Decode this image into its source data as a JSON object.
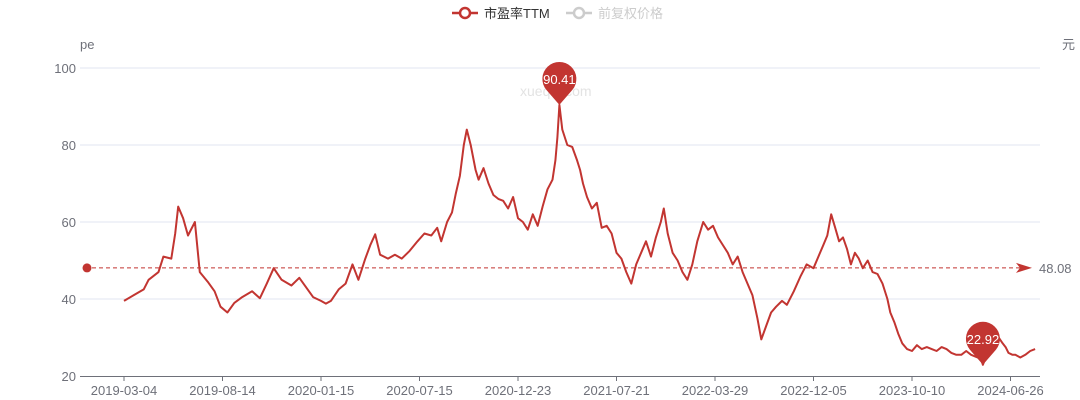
{
  "chart_data": {
    "type": "line",
    "y_unit_left": "pe",
    "y_unit_right": "元",
    "ylim": [
      20,
      100
    ],
    "y_ticks": [
      20,
      40,
      60,
      80,
      100
    ],
    "x_tick_labels": [
      "2019-03-04",
      "2019-08-14",
      "2020-01-15",
      "2020-07-15",
      "2020-12-23",
      "2021-07-21",
      "2022-03-29",
      "2022-12-05",
      "2023-10-10",
      "2024-06-26"
    ],
    "legend": {
      "position": "top-center",
      "items": [
        {
          "name": "市盈率TTM",
          "color": "#c23531",
          "active": true
        },
        {
          "name": "前复权价格",
          "color": "#cccccc",
          "active": false
        }
      ]
    },
    "colors": {
      "line": "#c23531",
      "grid": "#e0e6f1",
      "axis": "#6e7079"
    },
    "max_point": {
      "label": "90.41",
      "value": 90.41,
      "at_tick": 4.42
    },
    "min_point": {
      "label": "22.92",
      "value": 22.92,
      "at_tick": 8.72
    },
    "average": {
      "label": "48.08",
      "value": 48.08
    },
    "watermark": "xueqiu.com",
    "series": [
      {
        "name": "市盈率TTM",
        "points": [
          [
            0.0,
            39.5
          ],
          [
            0.1,
            41.0
          ],
          [
            0.2,
            42.5
          ],
          [
            0.25,
            45.0
          ],
          [
            0.35,
            47.0
          ],
          [
            0.4,
            51.0
          ],
          [
            0.48,
            50.5
          ],
          [
            0.52,
            57.0
          ],
          [
            0.55,
            64.0
          ],
          [
            0.6,
            61.0
          ],
          [
            0.65,
            56.5
          ],
          [
            0.72,
            60.0
          ],
          [
            0.77,
            47.0
          ],
          [
            0.85,
            44.5
          ],
          [
            0.92,
            42.0
          ],
          [
            0.98,
            38.0
          ],
          [
            1.05,
            36.5
          ],
          [
            1.12,
            39.0
          ],
          [
            1.2,
            40.5
          ],
          [
            1.3,
            42.0
          ],
          [
            1.38,
            40.2
          ],
          [
            1.45,
            44.0
          ],
          [
            1.52,
            48.0
          ],
          [
            1.6,
            45.0
          ],
          [
            1.7,
            43.5
          ],
          [
            1.78,
            45.5
          ],
          [
            1.85,
            43.0
          ],
          [
            1.92,
            40.5
          ],
          [
            2.0,
            39.5
          ],
          [
            2.05,
            38.8
          ],
          [
            2.1,
            39.5
          ],
          [
            2.18,
            42.5
          ],
          [
            2.25,
            44.0
          ],
          [
            2.32,
            49.0
          ],
          [
            2.38,
            45.0
          ],
          [
            2.45,
            50.5
          ],
          [
            2.5,
            54.0
          ],
          [
            2.55,
            56.8
          ],
          [
            2.6,
            51.5
          ],
          [
            2.68,
            50.5
          ],
          [
            2.75,
            51.5
          ],
          [
            2.82,
            50.5
          ],
          [
            2.9,
            52.5
          ],
          [
            2.98,
            55.0
          ],
          [
            3.05,
            57.0
          ],
          [
            3.12,
            56.5
          ],
          [
            3.18,
            58.5
          ],
          [
            3.22,
            55.0
          ],
          [
            3.28,
            60.0
          ],
          [
            3.33,
            62.5
          ],
          [
            3.37,
            67.5
          ],
          [
            3.41,
            72.0
          ],
          [
            3.45,
            80.0
          ],
          [
            3.48,
            84.0
          ],
          [
            3.52,
            80.0
          ],
          [
            3.57,
            73.5
          ],
          [
            3.6,
            71.0
          ],
          [
            3.65,
            74.0
          ],
          [
            3.7,
            70.0
          ],
          [
            3.75,
            67.0
          ],
          [
            3.8,
            66.0
          ],
          [
            3.85,
            65.5
          ],
          [
            3.9,
            63.5
          ],
          [
            3.95,
            66.5
          ],
          [
            4.0,
            61.0
          ],
          [
            4.05,
            60.0
          ],
          [
            4.1,
            58.0
          ],
          [
            4.15,
            62.0
          ],
          [
            4.2,
            59.0
          ],
          [
            4.25,
            64.0
          ],
          [
            4.3,
            68.5
          ],
          [
            4.35,
            71.0
          ],
          [
            4.38,
            76.0
          ],
          [
            4.4,
            82.0
          ],
          [
            4.42,
            90.41
          ],
          [
            4.45,
            84.0
          ],
          [
            4.5,
            80.0
          ],
          [
            4.55,
            79.5
          ],
          [
            4.6,
            76.0
          ],
          [
            4.63,
            73.5
          ],
          [
            4.66,
            70.0
          ],
          [
            4.7,
            66.5
          ],
          [
            4.75,
            63.5
          ],
          [
            4.8,
            65.0
          ],
          [
            4.85,
            58.5
          ],
          [
            4.9,
            59.0
          ],
          [
            4.95,
            57.0
          ],
          [
            5.0,
            52.0
          ],
          [
            5.05,
            50.5
          ],
          [
            5.1,
            47.0
          ],
          [
            5.15,
            44.0
          ],
          [
            5.2,
            49.0
          ],
          [
            5.25,
            52.0
          ],
          [
            5.3,
            55.0
          ],
          [
            5.35,
            51.0
          ],
          [
            5.4,
            56.0
          ],
          [
            5.45,
            60.0
          ],
          [
            5.48,
            63.5
          ],
          [
            5.52,
            57.0
          ],
          [
            5.57,
            52.0
          ],
          [
            5.62,
            50.0
          ],
          [
            5.67,
            47.0
          ],
          [
            5.72,
            45.0
          ],
          [
            5.77,
            49.0
          ],
          [
            5.82,
            55.0
          ],
          [
            5.88,
            60.0
          ],
          [
            5.93,
            58.0
          ],
          [
            5.98,
            59.0
          ],
          [
            6.03,
            56.0
          ],
          [
            6.08,
            54.0
          ],
          [
            6.13,
            52.0
          ],
          [
            6.18,
            49.0
          ],
          [
            6.23,
            51.0
          ],
          [
            6.28,
            47.0
          ],
          [
            6.33,
            44.0
          ],
          [
            6.38,
            41.0
          ],
          [
            6.43,
            35.0
          ],
          [
            6.47,
            29.5
          ],
          [
            6.52,
            33.0
          ],
          [
            6.57,
            36.5
          ],
          [
            6.62,
            38.0
          ],
          [
            6.68,
            39.5
          ],
          [
            6.73,
            38.5
          ],
          [
            6.8,
            42.0
          ],
          [
            6.87,
            46.0
          ],
          [
            6.93,
            49.0
          ],
          [
            7.0,
            48.0
          ],
          [
            7.05,
            51.0
          ],
          [
            7.1,
            54.0
          ],
          [
            7.14,
            56.5
          ],
          [
            7.18,
            62.0
          ],
          [
            7.22,
            58.5
          ],
          [
            7.26,
            55.0
          ],
          [
            7.3,
            56.0
          ],
          [
            7.34,
            53.0
          ],
          [
            7.38,
            49.0
          ],
          [
            7.42,
            52.0
          ],
          [
            7.46,
            50.5
          ],
          [
            7.5,
            48.0
          ],
          [
            7.55,
            50.0
          ],
          [
            7.6,
            47.0
          ],
          [
            7.65,
            46.5
          ],
          [
            7.7,
            44.0
          ],
          [
            7.75,
            40.0
          ],
          [
            7.78,
            36.5
          ],
          [
            7.82,
            34.0
          ],
          [
            7.86,
            31.0
          ],
          [
            7.9,
            28.5
          ],
          [
            7.95,
            27.0
          ],
          [
            8.0,
            26.5
          ],
          [
            8.05,
            28.0
          ],
          [
            8.1,
            27.0
          ],
          [
            8.15,
            27.5
          ],
          [
            8.2,
            27.0
          ],
          [
            8.25,
            26.5
          ],
          [
            8.3,
            27.5
          ],
          [
            8.35,
            27.0
          ],
          [
            8.4,
            26.0
          ],
          [
            8.45,
            25.5
          ],
          [
            8.5,
            25.5
          ],
          [
            8.55,
            26.5
          ],
          [
            8.6,
            25.5
          ],
          [
            8.65,
            25.0
          ],
          [
            8.7,
            24.5
          ],
          [
            8.72,
            22.92
          ],
          [
            8.75,
            25.0
          ],
          [
            8.8,
            27.5
          ],
          [
            8.85,
            29.5
          ],
          [
            8.88,
            30.0
          ],
          [
            8.92,
            28.5
          ],
          [
            8.95,
            27.5
          ],
          [
            8.98,
            26.0
          ],
          [
            9.02,
            25.5
          ],
          [
            9.05,
            25.5
          ],
          [
            9.1,
            24.8
          ],
          [
            9.15,
            25.5
          ],
          [
            9.2,
            26.5
          ],
          [
            9.25,
            27.0
          ]
        ]
      }
    ]
  }
}
